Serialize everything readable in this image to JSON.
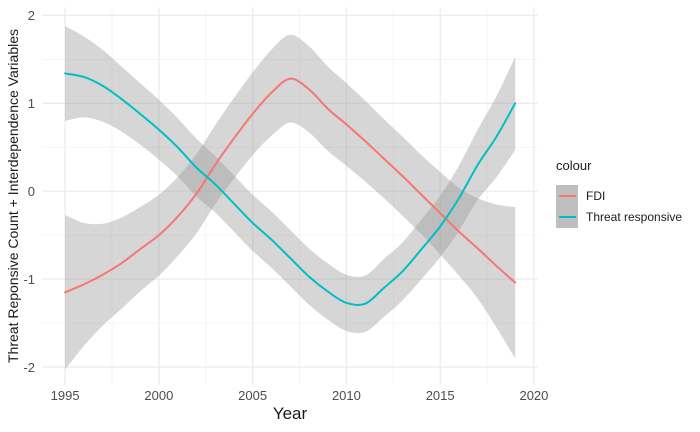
{
  "chart_data": {
    "type": "line",
    "title": "",
    "xlabel": "Year",
    "ylabel": "Threat Reponsive Count + Interdependence Variables",
    "x_ticks": [
      1995,
      2000,
      2005,
      2010,
      2015,
      2020
    ],
    "y_ticks": [
      -2,
      -1,
      0,
      1,
      2
    ],
    "xlim": [
      1993.8,
      2020.2
    ],
    "ylim": [
      -2.2,
      2.09
    ],
    "grid": true,
    "legend": {
      "title": "colour",
      "position": "right",
      "entries": [
        {
          "label": "FDI",
          "color": "#F8766D"
        },
        {
          "label": "Threat responsive",
          "color": "#00BFC4"
        }
      ]
    },
    "x": [
      1995,
      1996,
      1997,
      1998,
      1999,
      2000,
      2001,
      2002,
      2003,
      2004,
      2005,
      2006,
      2007,
      2008,
      2009,
      2010,
      2011,
      2012,
      2013,
      2014,
      2015,
      2016,
      2017,
      2018,
      2019
    ],
    "series": [
      {
        "name": "FDI",
        "color": "#F8766D",
        "values": [
          -1.15,
          -1.06,
          -0.95,
          -0.82,
          -0.66,
          -0.5,
          -0.29,
          -0.03,
          0.3,
          0.6,
          0.88,
          1.12,
          1.28,
          1.16,
          0.94,
          0.76,
          0.57,
          0.37,
          0.17,
          -0.04,
          -0.25,
          -0.46,
          -0.65,
          -0.85,
          -1.04
        ],
        "band_upper": [
          -0.27,
          -0.36,
          -0.37,
          -0.3,
          -0.18,
          -0.04,
          0.16,
          0.42,
          0.75,
          1.06,
          1.35,
          1.61,
          1.78,
          1.65,
          1.42,
          1.23,
          1.03,
          0.82,
          0.62,
          0.41,
          0.22,
          0.04,
          -0.08,
          -0.15,
          -0.18
        ],
        "band_lower": [
          -2.03,
          -1.76,
          -1.53,
          -1.34,
          -1.14,
          -0.96,
          -0.74,
          -0.48,
          -0.15,
          0.14,
          0.41,
          0.63,
          0.78,
          0.67,
          0.46,
          0.29,
          0.11,
          -0.08,
          -0.28,
          -0.49,
          -0.72,
          -0.96,
          -1.22,
          -1.55,
          -1.9
        ]
      },
      {
        "name": "Threat responsive",
        "color": "#00BFC4",
        "values": [
          1.34,
          1.3,
          1.2,
          1.05,
          0.88,
          0.7,
          0.5,
          0.27,
          0.08,
          -0.14,
          -0.36,
          -0.55,
          -0.76,
          -0.97,
          -1.14,
          -1.27,
          -1.28,
          -1.1,
          -0.91,
          -0.66,
          -0.4,
          -0.08,
          0.3,
          0.62,
          1.0
        ],
        "band_upper": [
          1.88,
          1.76,
          1.61,
          1.42,
          1.23,
          1.04,
          0.83,
          0.6,
          0.4,
          0.18,
          -0.04,
          -0.23,
          -0.44,
          -0.65,
          -0.82,
          -0.95,
          -0.96,
          -0.77,
          -0.58,
          -0.32,
          -0.05,
          0.29,
          0.7,
          1.08,
          1.53
        ],
        "band_lower": [
          0.8,
          0.84,
          0.79,
          0.68,
          0.53,
          0.36,
          0.17,
          -0.06,
          -0.24,
          -0.46,
          -0.68,
          -0.87,
          -1.08,
          -1.29,
          -1.46,
          -1.59,
          -1.6,
          -1.43,
          -1.24,
          -1.0,
          -0.75,
          -0.45,
          -0.1,
          0.16,
          0.47
        ]
      }
    ],
    "band_color": "#999999",
    "band_opacity": 0.4
  },
  "colors": {
    "background": "#FFFFFF",
    "grid_major": "#EBEBEB",
    "grid_minor": "#F0F0F0",
    "tick_text": "#4D4D4D",
    "axis_title_text": "#1A1A1A",
    "legend_key_bg": "#BFBFBF"
  }
}
